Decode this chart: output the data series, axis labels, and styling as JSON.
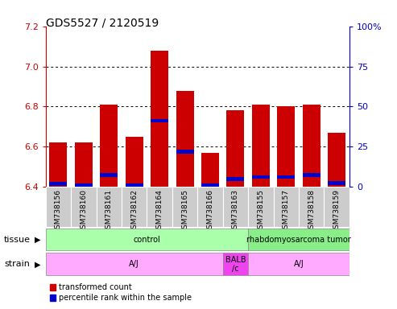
{
  "title": "GDS5527 / 2120519",
  "samples": [
    "GSM738156",
    "GSM738160",
    "GSM738161",
    "GSM738162",
    "GSM738164",
    "GSM738165",
    "GSM738166",
    "GSM738163",
    "GSM738155",
    "GSM738157",
    "GSM738158",
    "GSM738159"
  ],
  "red_values": [
    6.62,
    6.62,
    6.81,
    6.65,
    7.08,
    6.88,
    6.57,
    6.78,
    6.81,
    6.8,
    6.81,
    6.67
  ],
  "blue_values": [
    6.415,
    6.41,
    6.46,
    6.41,
    6.73,
    6.575,
    6.41,
    6.44,
    6.45,
    6.45,
    6.46,
    6.42
  ],
  "ymin": 6.4,
  "ymax": 7.2,
  "yticks_left": [
    6.4,
    6.6,
    6.8,
    7.0,
    7.2
  ],
  "yticks_right_vals": [
    0,
    25,
    50,
    75,
    100
  ],
  "right_axis_color": "#0000cc",
  "left_axis_color": "#cc0000",
  "bar_red": "#cc0000",
  "bar_blue": "#0000cc",
  "legend_red": "transformed count",
  "legend_blue": "percentile rank within the sample",
  "bar_width": 0.7,
  "tick_label_size": 6.5,
  "title_fontsize": 10
}
